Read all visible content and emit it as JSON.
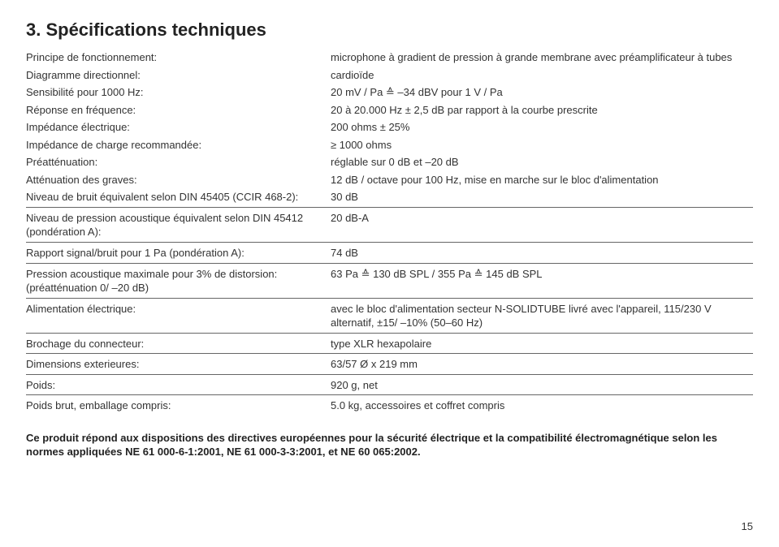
{
  "title": "3. Spécifications techniques",
  "rows": [
    {
      "label": "Principe de fonctionnement:",
      "value": "microphone à gradient de pression à grande membrane avec préamplificateur à tubes"
    },
    {
      "label": "Diagramme directionnel:",
      "value": "cardioïde"
    },
    {
      "label": "Sensibilité pour 1000 Hz:",
      "value": "20 mV / Pa ≙ –34 dBV pour 1 V / Pa"
    },
    {
      "label": "Réponse en fréquence:",
      "value": "20 à 20.000 Hz ± 2,5 dB par rapport à la courbe prescrite"
    },
    {
      "label": "Impédance électrique:",
      "value": "200 ohms ± 25%"
    },
    {
      "label": "Impédance de charge recommandée:",
      "value": "≥ 1000 ohms"
    },
    {
      "label": "Préatténuation:",
      "value": "réglable sur 0 dB et –20 dB"
    },
    {
      "label": "Atténuation des graves:",
      "value": "12 dB / octave pour 100 Hz, mise en marche sur le bloc d'alimentation"
    },
    {
      "label": "Niveau de bruit équivalent selon DIN 45405 (CCIR 468-2):",
      "value": "30 dB"
    },
    {
      "label": "Niveau de pression acoustique équivalent selon DIN 45412 (pondération A):",
      "value": "20 dB-A"
    },
    {
      "label": "Rapport signal/bruit pour 1 Pa (pondération A):",
      "value": "74 dB"
    },
    {
      "label": "Pression acoustique maximale pour 3% de distorsion: (préatténuation 0/ –20 dB)",
      "value": "63 Pa ≙ 130 dB SPL / 355 Pa ≙ 145 dB SPL"
    },
    {
      "label": "Alimentation électrique:",
      "value": "avec le bloc d'alimentation secteur N-SOLIDTUBE livré avec l'appareil, 115/230 V alternatif, ±15/ –10% (50–60 Hz)"
    },
    {
      "label": "Brochage du connecteur:",
      "value": "type XLR hexapolaire"
    },
    {
      "label": "Dimensions exterieures:",
      "value": "63/57 Ø x 219 mm"
    },
    {
      "label": "Poids:",
      "value": "920 g, net"
    },
    {
      "label": "Poids brut, emballage compris:",
      "value": "5.0 kg, accessoires et coffret compris"
    }
  ],
  "separator_after": [
    9,
    10,
    11,
    12,
    13,
    14,
    15,
    16
  ],
  "footnote": "Ce produit répond aux dispositions des directives européennes pour la sécurité électrique et la compatibilité électromagnétique selon les normes appliquées NE 61 000-6-1:2001, NE 61 000-3-3:2001, et NE 60 065:2002.",
  "page_number": "15"
}
